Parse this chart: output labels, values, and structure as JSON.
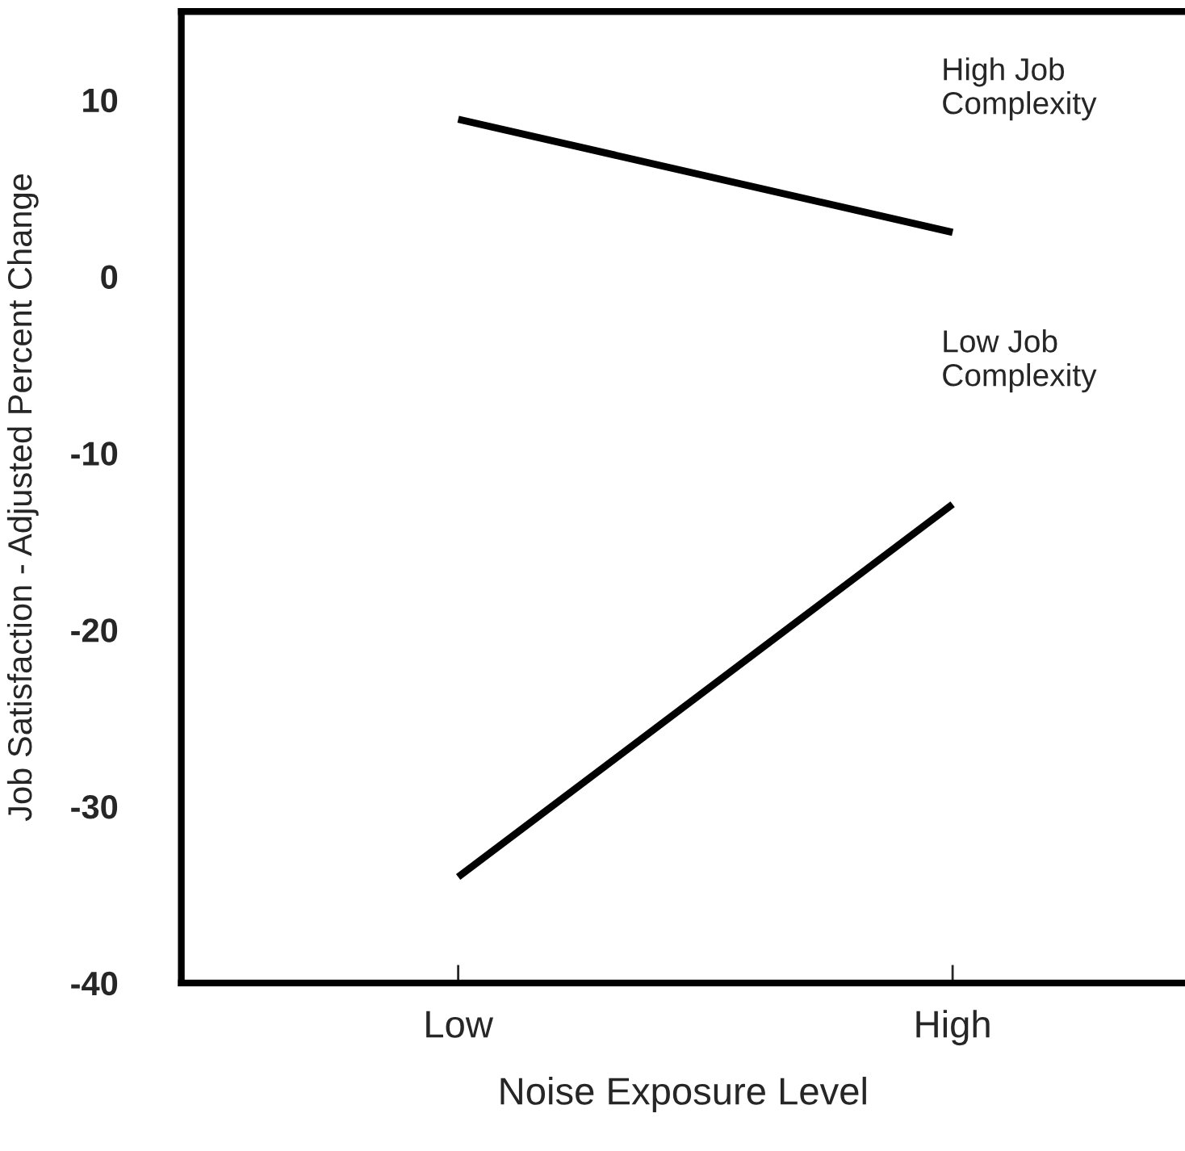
{
  "chart_data": {
    "type": "line",
    "xlabel": "Noise Exposure Level",
    "ylabel": "Job Satisfaction - Adjusted Percent Change",
    "categories": [
      "Low",
      "High"
    ],
    "series": [
      {
        "name": "High Job\nComplexity",
        "color": "#000000",
        "values": [
          8.9,
          2.5
        ]
      },
      {
        "name": "Low Job\nComplexity",
        "color": "#000000",
        "values": [
          -34,
          -12.9
        ]
      }
    ],
    "ylim": [
      -40,
      15
    ],
    "yticks": [
      -40,
      -30,
      -20,
      -10,
      0,
      10
    ],
    "grid": false,
    "legend": false,
    "marker": "none",
    "line_style": "solid"
  }
}
